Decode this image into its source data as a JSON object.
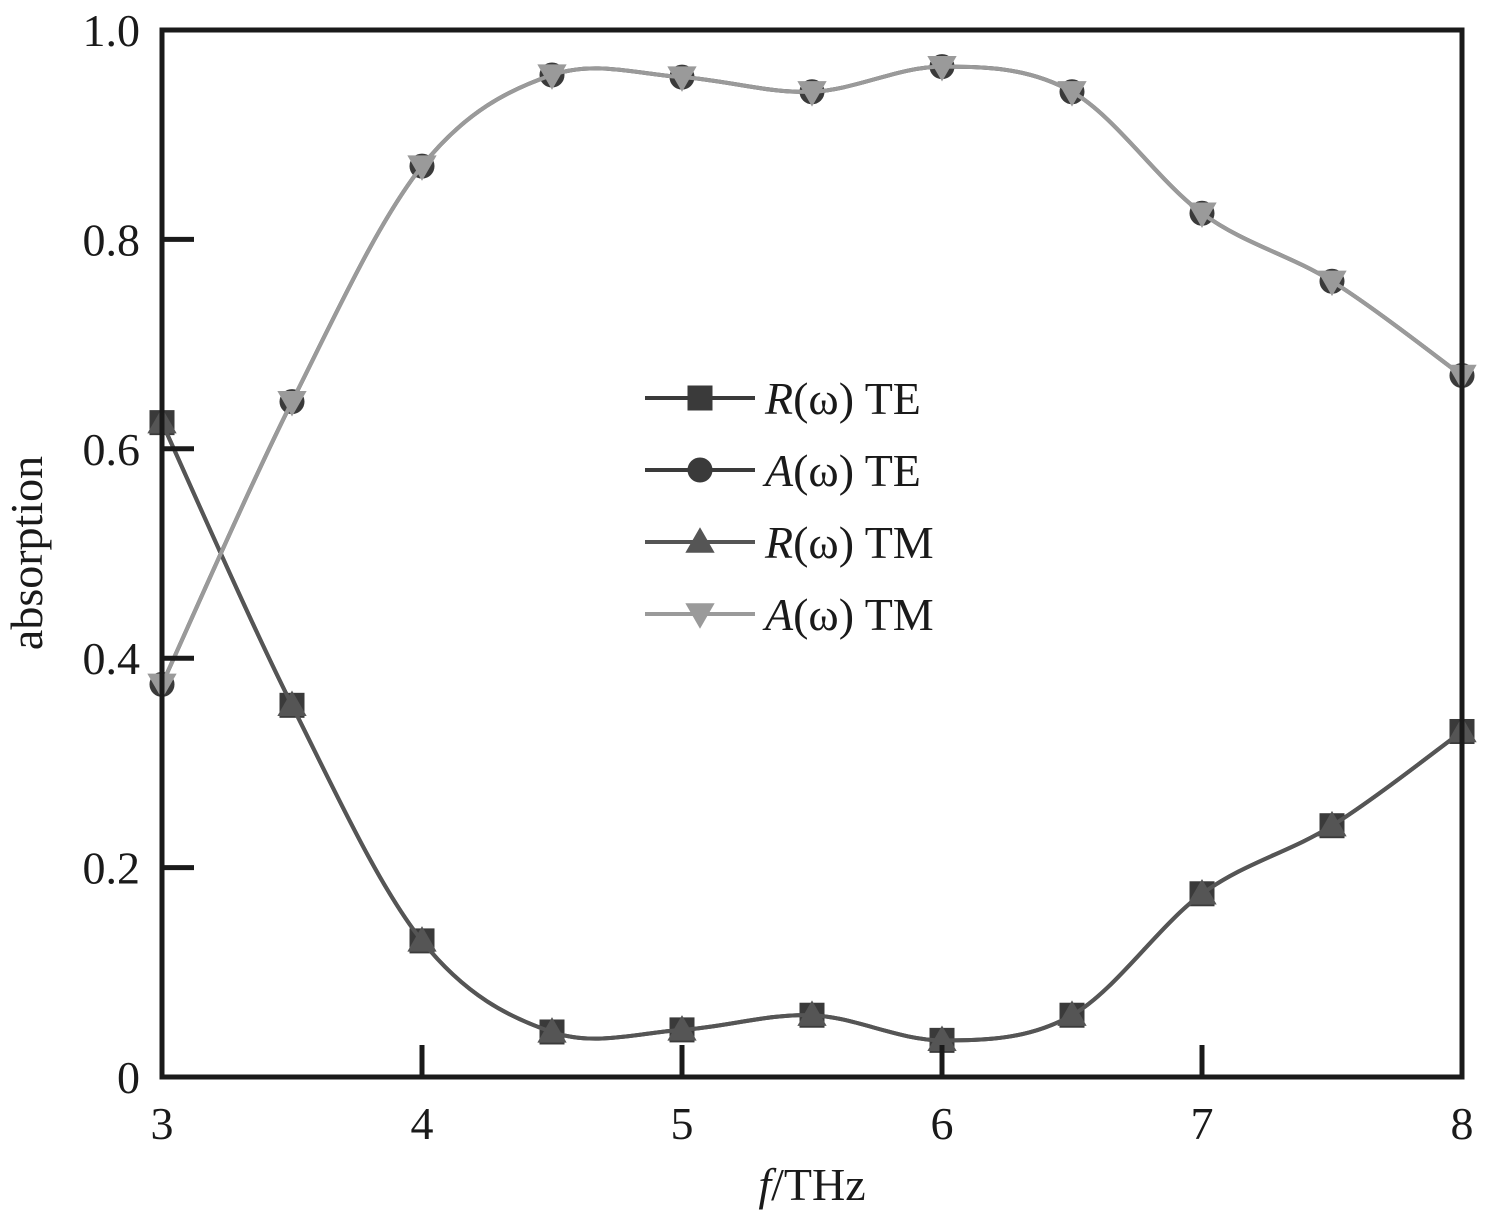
{
  "chart_data": {
    "type": "line",
    "xlabel_italic": "f",
    "xlabel_rest": "/THz",
    "ylabel": "absorption",
    "xlim": [
      3,
      8
    ],
    "ylim": [
      0,
      1.0
    ],
    "x_ticks": [
      "3",
      "4",
      "5",
      "6",
      "7",
      "8"
    ],
    "y_ticks": [
      "0",
      "0.2",
      "0.4",
      "0.6",
      "0.8",
      "1.0"
    ],
    "x": [
      3,
      3.5,
      4,
      4.5,
      5,
      5.5,
      6,
      6.5,
      7,
      7.5,
      8
    ],
    "legend_position": "center",
    "series": [
      {
        "name_italic": "R",
        "name_rest": "(ω) TE",
        "marker": "square",
        "color": "#3a3a3a",
        "values": [
          0.625,
          0.355,
          0.13,
          0.043,
          0.045,
          0.059,
          0.035,
          0.059,
          0.175,
          0.24,
          0.33
        ]
      },
      {
        "name_italic": "A",
        "name_rest": "(ω) TE",
        "marker": "circle",
        "color": "#3a3a3a",
        "values": [
          0.375,
          0.645,
          0.87,
          0.957,
          0.955,
          0.941,
          0.965,
          0.941,
          0.825,
          0.76,
          0.67
        ]
      },
      {
        "name_italic": "R",
        "name_rest": "(ω) TM",
        "marker": "triangle-up",
        "color": "#555555",
        "values": [
          0.625,
          0.355,
          0.13,
          0.043,
          0.045,
          0.059,
          0.035,
          0.059,
          0.175,
          0.24,
          0.33
        ]
      },
      {
        "name_italic": "A",
        "name_rest": "(ω) TM",
        "marker": "triangle-down",
        "color": "#9a9a9a",
        "values": [
          0.375,
          0.645,
          0.87,
          0.957,
          0.955,
          0.941,
          0.965,
          0.941,
          0.825,
          0.76,
          0.67
        ]
      }
    ]
  }
}
